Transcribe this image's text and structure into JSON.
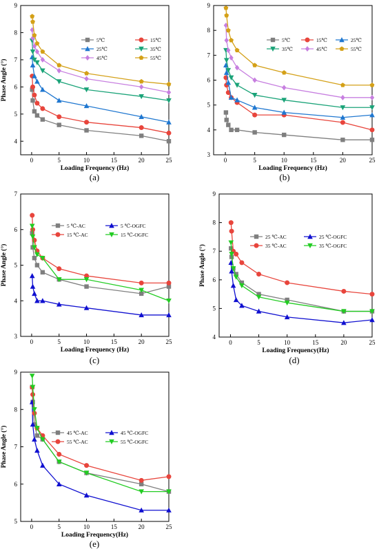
{
  "chart_data": [
    {
      "type": "line",
      "caption": "(a)",
      "xlabel": "Loading Frequency (Hz)",
      "ylabel": "Phase Angle (°)",
      "xlim": [
        -2,
        25
      ],
      "ylim": [
        3.5,
        9
      ],
      "xticks": [
        0,
        5,
        10,
        15,
        20,
        25
      ],
      "yticks": [
        4,
        5,
        6,
        7,
        8,
        9
      ],
      "legend_cols": 2,
      "legend_placement": "top-right",
      "x": [
        0.1,
        0.2,
        0.5,
        1,
        2,
        5,
        10,
        20,
        25
      ],
      "series": [
        {
          "name": "5℃",
          "color": "#7f7f7f",
          "marker": "square",
          "values": [
            5.9,
            5.5,
            5.1,
            4.95,
            4.8,
            4.6,
            4.4,
            4.2,
            4.0
          ]
        },
        {
          "name": "15℃",
          "color": "#e8453c",
          "marker": "circle",
          "values": [
            6.4,
            6.0,
            5.7,
            5.4,
            5.2,
            4.9,
            4.7,
            4.5,
            4.3
          ]
        },
        {
          "name": "25℃",
          "color": "#1f77d0",
          "marker": "triangle",
          "values": [
            7.1,
            6.8,
            6.4,
            6.2,
            5.9,
            5.5,
            5.3,
            4.9,
            4.7
          ]
        },
        {
          "name": "35℃",
          "color": "#1aa378",
          "marker": "triangle-down",
          "values": [
            7.7,
            7.3,
            7.0,
            6.9,
            6.6,
            6.2,
            5.9,
            5.65,
            5.5
          ]
        },
        {
          "name": "45℃",
          "color": "#c77fe0",
          "marker": "diamond",
          "values": [
            8.1,
            7.8,
            7.5,
            7.3,
            7.0,
            6.6,
            6.3,
            6.0,
            5.8
          ]
        },
        {
          "name": "55℃",
          "color": "#d4a017",
          "marker": "pentagon",
          "values": [
            8.6,
            8.4,
            7.9,
            7.6,
            7.3,
            6.8,
            6.5,
            6.2,
            6.1
          ]
        }
      ]
    },
    {
      "type": "line",
      "caption": "(b)",
      "xlabel": "Loading Frequency (Hz)",
      "ylabel": "",
      "xlim": [
        -2,
        25
      ],
      "ylim": [
        3,
        9
      ],
      "xticks": [
        0,
        5,
        10,
        15,
        20,
        25
      ],
      "yticks": [
        3,
        4,
        5,
        6,
        7,
        8,
        9
      ],
      "legend_cols": 3,
      "legend_placement": "top-right",
      "x": [
        0.1,
        0.2,
        0.5,
        1,
        2,
        5,
        10,
        20,
        25
      ],
      "series": [
        {
          "name": "5℃",
          "color": "#7f7f7f",
          "marker": "square",
          "values": [
            4.7,
            4.4,
            4.2,
            4.0,
            4.0,
            3.9,
            3.8,
            3.6,
            3.6
          ]
        },
        {
          "name": "15℃",
          "color": "#e8453c",
          "marker": "circle",
          "values": [
            6.1,
            5.8,
            5.5,
            5.3,
            5.1,
            4.6,
            4.6,
            4.3,
            4.0
          ]
        },
        {
          "name": "25℃",
          "color": "#1f77d0",
          "marker": "triangle",
          "values": [
            6.6,
            6.3,
            5.9,
            5.3,
            5.2,
            4.9,
            4.7,
            4.5,
            4.6
          ]
        },
        {
          "name": "35℃",
          "color": "#1aa378",
          "marker": "triangle-down",
          "values": [
            7.2,
            6.8,
            6.4,
            6.1,
            5.8,
            5.4,
            5.2,
            4.9,
            4.9
          ]
        },
        {
          "name": "45℃",
          "color": "#c77fe0",
          "marker": "diamond",
          "values": [
            8.2,
            7.6,
            7.2,
            6.9,
            6.5,
            6.0,
            5.7,
            5.3,
            5.3
          ]
        },
        {
          "name": "55℃",
          "color": "#d4a017",
          "marker": "pentagon",
          "values": [
            8.9,
            8.6,
            8.0,
            7.6,
            7.2,
            6.6,
            6.3,
            5.8,
            5.8
          ]
        }
      ]
    },
    {
      "type": "line",
      "caption": "(c)",
      "xlabel": "Loading Frequency (Hz)",
      "ylabel": "Phase Angle (°)",
      "xlim": [
        -2,
        25
      ],
      "ylim": [
        3,
        7
      ],
      "xticks": [
        0,
        5,
        10,
        15,
        20,
        25
      ],
      "yticks": [
        3,
        4,
        5,
        6,
        7
      ],
      "legend_cols": 2,
      "legend_placement": "top-right",
      "x": [
        0.1,
        0.2,
        0.5,
        1,
        2,
        5,
        10,
        20,
        25
      ],
      "series": [
        {
          "name": "5 ℃-AC",
          "color": "#7f7f7f",
          "marker": "square",
          "values": [
            5.9,
            5.5,
            5.2,
            5.0,
            4.8,
            4.6,
            4.4,
            4.2,
            4.4
          ]
        },
        {
          "name": "5 ℃-OGFC",
          "color": "#1010d0",
          "marker": "triangle",
          "values": [
            4.7,
            4.4,
            4.2,
            4.0,
            4.0,
            3.9,
            3.8,
            3.6,
            3.6
          ]
        },
        {
          "name": "15 ℃-AC",
          "color": "#e8453c",
          "marker": "circle",
          "values": [
            6.4,
            6.0,
            5.7,
            5.4,
            5.2,
            4.9,
            4.7,
            4.5,
            4.5
          ]
        },
        {
          "name": "15 ℃-OGFC",
          "color": "#22cc22",
          "marker": "triangle-down",
          "values": [
            6.1,
            5.8,
            5.5,
            5.3,
            5.2,
            4.6,
            4.6,
            4.3,
            4.0
          ]
        }
      ]
    },
    {
      "type": "line",
      "caption": "(d)",
      "xlabel": "Loading Frequency(Hz)",
      "ylabel": "Phase Angle (°)",
      "xlim": [
        -2,
        25
      ],
      "ylim": [
        4,
        9
      ],
      "xticks": [
        0,
        5,
        10,
        15,
        20,
        25
      ],
      "yticks": [
        4,
        5,
        6,
        7,
        8,
        9
      ],
      "legend_cols": 2,
      "legend_placement": "top-right",
      "x": [
        0.1,
        0.2,
        0.5,
        1,
        2,
        5,
        10,
        20,
        25
      ],
      "series": [
        {
          "name": "25 ℃-AC",
          "color": "#7f7f7f",
          "marker": "square",
          "values": [
            7.1,
            6.8,
            6.4,
            6.2,
            5.9,
            5.5,
            5.3,
            4.9,
            4.9
          ]
        },
        {
          "name": "25 ℃-OGFC",
          "color": "#1010d0",
          "marker": "triangle",
          "values": [
            6.6,
            6.3,
            5.8,
            5.3,
            5.1,
            4.9,
            4.7,
            4.5,
            4.6
          ]
        },
        {
          "name": "35 ℃-AC",
          "color": "#e8453c",
          "marker": "circle",
          "values": [
            8.0,
            7.7,
            7.0,
            6.9,
            6.6,
            6.2,
            5.9,
            5.6,
            5.5
          ]
        },
        {
          "name": "35 ℃-OGFC",
          "color": "#22cc22",
          "marker": "triangle-down",
          "values": [
            7.3,
            6.9,
            6.4,
            6.1,
            5.8,
            5.4,
            5.2,
            4.9,
            4.9
          ]
        }
      ]
    },
    {
      "type": "line",
      "caption": "(e)",
      "xlabel": "Loading Frequency(Hz)",
      "ylabel": "Phase Angle (°)",
      "xlim": [
        -2,
        25
      ],
      "ylim": [
        5,
        9
      ],
      "xticks": [
        0,
        5,
        10,
        15,
        20,
        25
      ],
      "yticks": [
        5,
        6,
        7,
        8,
        9
      ],
      "legend_cols": 2,
      "legend_placement": "top-right",
      "x": [
        0.1,
        0.2,
        0.5,
        1,
        2,
        5,
        10,
        20,
        25
      ],
      "series": [
        {
          "name": "45 ℃-AC",
          "color": "#7f7f7f",
          "marker": "square",
          "values": [
            8.6,
            8.2,
            7.6,
            7.3,
            7.2,
            6.6,
            6.3,
            6.0,
            5.8
          ]
        },
        {
          "name": "45 ℃-OGFC",
          "color": "#1010d0",
          "marker": "triangle",
          "values": [
            8.2,
            7.6,
            7.2,
            6.9,
            6.5,
            6.0,
            5.7,
            5.3,
            5.3
          ]
        },
        {
          "name": "55 ℃-AC",
          "color": "#e8453c",
          "marker": "circle",
          "values": [
            8.6,
            8.4,
            7.9,
            7.5,
            7.3,
            6.8,
            6.5,
            6.1,
            6.2
          ]
        },
        {
          "name": "55 ℃-OGFC",
          "color": "#22cc22",
          "marker": "triangle-down",
          "values": [
            8.9,
            8.6,
            8.0,
            7.5,
            7.2,
            6.6,
            6.3,
            5.8,
            5.8
          ]
        }
      ]
    }
  ]
}
